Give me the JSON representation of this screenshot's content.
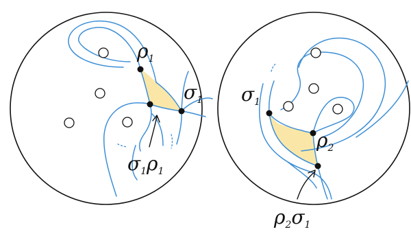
{
  "colors": {
    "arc": "#3d8fd6",
    "region_fill": "#fae7a8",
    "ink": "#111111"
  },
  "left_disk": {
    "label_rho": {
      "base": "ρ",
      "sub": "1"
    },
    "label_sigma": {
      "base": "σ",
      "sub": "1"
    },
    "label_product": {
      "a": "σ",
      "a_sub": "1",
      "b": "ρ",
      "b_sub": "1"
    }
  },
  "right_disk": {
    "label_sigma": {
      "base": "σ",
      "sub": "1"
    },
    "label_rho": {
      "base": "ρ",
      "sub": "2"
    },
    "label_product": {
      "a": "ρ",
      "a_sub": "2",
      "b": "σ",
      "b_sub": "1"
    }
  }
}
